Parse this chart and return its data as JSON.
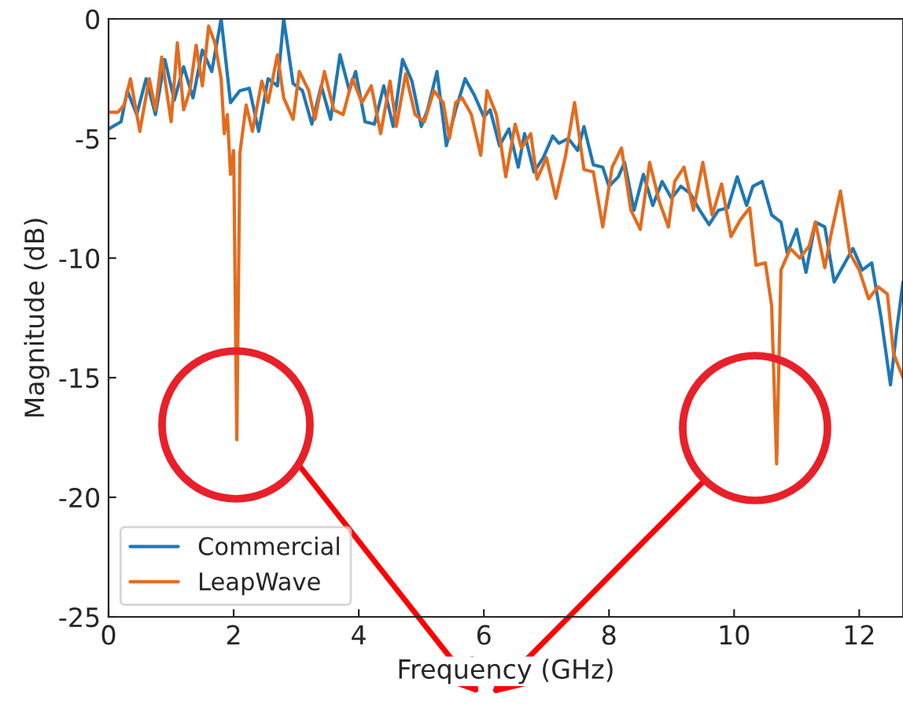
{
  "chart_data": {
    "type": "line",
    "xlabel": "Frequency (GHz)",
    "ylabel": "Magnitude (dB)",
    "xlim": [
      0,
      12.7
    ],
    "xticks": [
      0,
      2,
      4,
      6,
      8,
      10,
      12
    ],
    "ylim": [
      -25,
      0
    ],
    "yticks": [
      -25,
      -20,
      -15,
      -10,
      -5,
      0
    ],
    "legend": "bottom left",
    "grid": false,
    "line_style": "solid",
    "marker": "none",
    "series": [
      {
        "name": "Commercial",
        "color": "#1f77b4",
        "x": [
          0.0,
          0.2,
          0.3,
          0.45,
          0.6,
          0.75,
          0.9,
          1.05,
          1.2,
          1.35,
          1.5,
          1.65,
          1.8,
          1.95,
          2.1,
          2.25,
          2.4,
          2.55,
          2.7,
          2.8,
          2.95,
          3.1,
          3.25,
          3.4,
          3.55,
          3.7,
          3.85,
          3.95,
          4.1,
          4.25,
          4.4,
          4.55,
          4.7,
          4.85,
          5.0,
          5.1,
          5.25,
          5.4,
          5.55,
          5.7,
          5.85,
          6.0,
          6.1,
          6.25,
          6.4,
          6.55,
          6.65,
          6.8,
          6.95,
          7.1,
          7.2,
          7.35,
          7.5,
          7.6,
          7.75,
          7.9,
          8.0,
          8.15,
          8.25,
          8.4,
          8.55,
          8.7,
          8.85,
          9.0,
          9.15,
          9.3,
          9.45,
          9.6,
          9.75,
          9.9,
          10.05,
          10.2,
          10.3,
          10.45,
          10.6,
          10.75,
          10.85,
          11.0,
          11.15,
          11.3,
          11.45,
          11.6,
          11.75,
          11.9,
          12.05,
          12.2,
          12.35,
          12.5,
          12.6,
          12.7
        ],
        "values": [
          -4.6,
          -4.3,
          -3.0,
          -4.0,
          -2.5,
          -4.0,
          -1.7,
          -3.4,
          -2.0,
          -3.3,
          -1.3,
          -2.2,
          0.0,
          -3.5,
          -3.0,
          -2.9,
          -4.7,
          -2.5,
          -2.8,
          0.0,
          -2.7,
          -3.0,
          -4.4,
          -2.8,
          -4.2,
          -1.5,
          -3.0,
          -2.2,
          -4.3,
          -4.4,
          -2.8,
          -4.5,
          -1.7,
          -2.6,
          -4.5,
          -3.8,
          -2.2,
          -5.3,
          -3.8,
          -2.5,
          -3.2,
          -4.1,
          -3.8,
          -5.3,
          -4.6,
          -6.2,
          -4.8,
          -6.4,
          -5.8,
          -4.9,
          -5.2,
          -5.0,
          -5.5,
          -4.5,
          -6.1,
          -6.2,
          -7.0,
          -6.6,
          -6.0,
          -8.0,
          -6.5,
          -7.8,
          -6.8,
          -7.5,
          -7.0,
          -7.3,
          -8.0,
          -8.6,
          -8.0,
          -7.9,
          -6.6,
          -7.8,
          -7.0,
          -6.8,
          -8.2,
          -8.5,
          -9.8,
          -8.8,
          -10.6,
          -8.5,
          -8.7,
          -11.0,
          -10.3,
          -9.6,
          -10.5,
          -10.2,
          -12.5,
          -15.3,
          -13.0,
          -11.0
        ]
      },
      {
        "name": "LeapWave",
        "color": "#e36c1e",
        "x": [
          0.0,
          0.15,
          0.25,
          0.35,
          0.5,
          0.65,
          0.75,
          0.85,
          1.0,
          1.1,
          1.2,
          1.3,
          1.4,
          1.5,
          1.6,
          1.7,
          1.8,
          1.85,
          1.9,
          1.95,
          2.0,
          2.05,
          2.1,
          2.2,
          2.3,
          2.45,
          2.55,
          2.7,
          2.8,
          2.95,
          3.05,
          3.2,
          3.3,
          3.45,
          3.6,
          3.75,
          3.9,
          4.05,
          4.2,
          4.35,
          4.5,
          4.6,
          4.75,
          4.9,
          5.05,
          5.2,
          5.35,
          5.45,
          5.55,
          5.65,
          5.8,
          5.95,
          6.05,
          6.2,
          6.35,
          6.5,
          6.6,
          6.75,
          6.85,
          7.0,
          7.15,
          7.3,
          7.45,
          7.6,
          7.75,
          7.9,
          8.05,
          8.2,
          8.35,
          8.5,
          8.65,
          8.8,
          8.95,
          9.05,
          9.2,
          9.35,
          9.5,
          9.65,
          9.8,
          9.95,
          10.1,
          10.25,
          10.35,
          10.5,
          10.6,
          10.68,
          10.75,
          10.9,
          11.05,
          11.2,
          11.3,
          11.45,
          11.55,
          11.7,
          11.85,
          12.0,
          12.15,
          12.3,
          12.45,
          12.55,
          12.7
        ],
        "values": [
          -3.9,
          -3.9,
          -3.6,
          -2.5,
          -4.7,
          -2.5,
          -3.8,
          -1.6,
          -4.3,
          -1.0,
          -3.8,
          -3.0,
          -1.1,
          -2.8,
          -0.3,
          -1.0,
          -2.5,
          -4.8,
          -4.0,
          -6.5,
          -5.5,
          -17.6,
          -5.6,
          -3.6,
          -4.7,
          -2.6,
          -3.5,
          -1.5,
          -3.3,
          -4.2,
          -2.2,
          -3.0,
          -4.2,
          -2.2,
          -3.8,
          -4.0,
          -2.5,
          -3.5,
          -2.8,
          -4.8,
          -2.6,
          -4.5,
          -2.3,
          -4.0,
          -4.3,
          -3.0,
          -3.5,
          -5.0,
          -3.5,
          -3.3,
          -4.0,
          -5.7,
          -3.0,
          -4.0,
          -6.6,
          -4.4,
          -5.4,
          -4.8,
          -6.7,
          -5.8,
          -7.5,
          -5.8,
          -3.5,
          -6.3,
          -6.4,
          -8.7,
          -6.2,
          -5.4,
          -8.0,
          -8.8,
          -6.0,
          -7.6,
          -8.7,
          -6.8,
          -6.2,
          -8.0,
          -6.0,
          -8.2,
          -6.9,
          -9.1,
          -8.4,
          -7.9,
          -10.3,
          -10.2,
          -12.0,
          -18.6,
          -10.5,
          -9.6,
          -10.0,
          -9.5,
          -8.5,
          -10.4,
          -9.0,
          -7.2,
          -9.8,
          -10.5,
          -11.7,
          -11.2,
          -11.5,
          -14.0,
          -15.0
        ]
      }
    ]
  }
}
